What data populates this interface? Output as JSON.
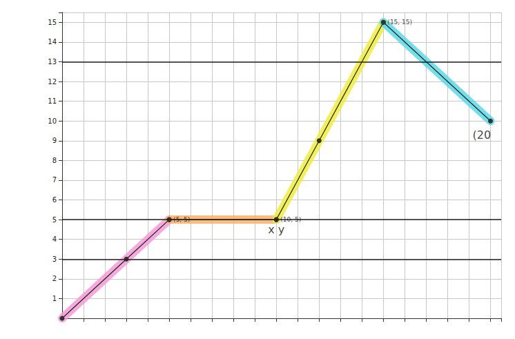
{
  "chart_data": {
    "type": "line",
    "series": [
      {
        "color": "#f59bd6",
        "x": [
          0,
          3,
          5
        ],
        "values": [
          0,
          3,
          5
        ]
      },
      {
        "color": "#f9b168",
        "x": [
          5,
          10
        ],
        "values": [
          5,
          5
        ]
      },
      {
        "color": "#eeee3a",
        "x": [
          10,
          12,
          15
        ],
        "values": [
          5,
          9,
          15
        ]
      },
      {
        "color": "#5ad9e6",
        "x": [
          15,
          20
        ],
        "values": [
          15,
          10
        ]
      }
    ],
    "reference_lines": [
      3,
      5,
      13
    ],
    "annotations": [
      {
        "x": 5,
        "y": 5,
        "text": "(5, 5)"
      },
      {
        "x": 10,
        "y": 5,
        "text": "(10, 5)"
      },
      {
        "x": 15,
        "y": 15,
        "text": "(15, 15)"
      },
      {
        "x": 10,
        "y": 5,
        "text": "x y"
      },
      {
        "x": 20,
        "y": 10,
        "text": "(20"
      }
    ],
    "xlim": [
      0,
      20.5
    ],
    "xticks": [
      0,
      1,
      2,
      3,
      4,
      5,
      6,
      7,
      8,
      9,
      10,
      11,
      12,
      13,
      14,
      15,
      16,
      17,
      18,
      19,
      20
    ],
    "ylim": [
      0,
      15.5
    ],
    "yticks": [
      1,
      2,
      3,
      4,
      5,
      6,
      7,
      8,
      9,
      10,
      11,
      12,
      13,
      14,
      15
    ],
    "grid": true,
    "tick_labels": "y",
    "marker": "circle"
  }
}
